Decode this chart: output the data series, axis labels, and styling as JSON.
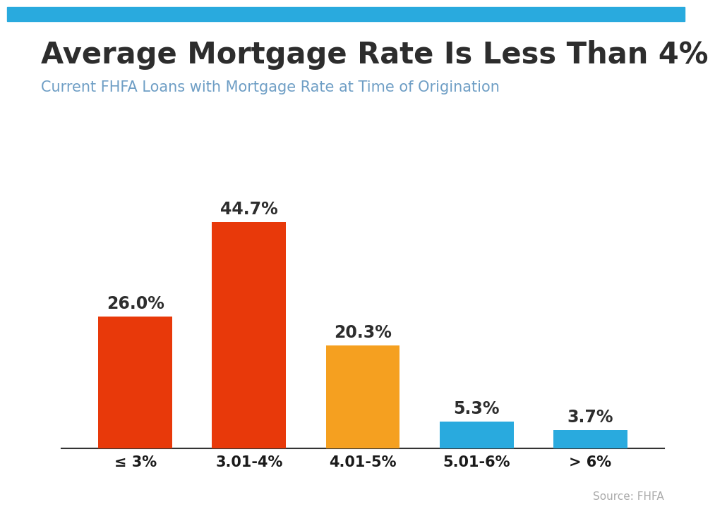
{
  "title": "Average Mortgage Rate Is Less Than 4%",
  "subtitle": "Current FHFA Loans with Mortgage Rate at Time of Origination",
  "source": "Source: FHFA",
  "categories": [
    "≤ 3%",
    "3.01-4%",
    "4.01-5%",
    "5.01-6%",
    "> 6%"
  ],
  "values": [
    26.0,
    44.7,
    20.3,
    5.3,
    3.7
  ],
  "bar_colors": [
    "#E8390A",
    "#E8390A",
    "#F5A020",
    "#29AADE",
    "#29AADE"
  ],
  "background_color": "#FFFFFF",
  "title_color": "#2D2D2D",
  "subtitle_color": "#6E9EC5",
  "source_color": "#AAAAAA",
  "label_color": "#2D2D2D",
  "xlabel_color": "#1A1A1A",
  "top_accent_color": "#29AADE",
  "ylim": [
    0,
    52
  ],
  "title_fontsize": 30,
  "subtitle_fontsize": 15,
  "label_fontsize": 17,
  "xtick_fontsize": 15,
  "source_fontsize": 11
}
